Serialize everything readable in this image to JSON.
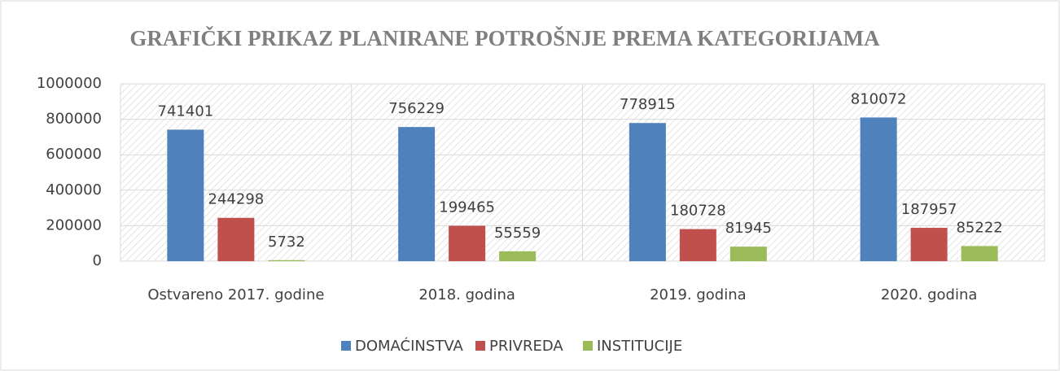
{
  "chart_data": {
    "type": "bar",
    "title": "GRAFIČKI PRIKAZ PLANIRANE POTROŠNJE PREMA KATEGORIJAMA",
    "categories": [
      "Ostvareno 2017. godine",
      "2018. godina",
      "2019. godina",
      "2020. godina"
    ],
    "series": [
      {
        "name": "DOMAĆINSTVA",
        "color": "#4f81bd",
        "values": [
          741401,
          756229,
          778915,
          810072
        ]
      },
      {
        "name": "PRIVREDA",
        "color": "#c0504d",
        "values": [
          244298,
          199465,
          180728,
          187957
        ]
      },
      {
        "name": "INSTITUCIJE",
        "color": "#9bbb59",
        "values": [
          5732,
          55559,
          81945,
          85222
        ]
      }
    ],
    "ylim": [
      0,
      1000000
    ],
    "yticks": [
      0,
      200000,
      400000,
      600000,
      800000,
      1000000
    ],
    "grid": true,
    "legend": "bottom"
  }
}
